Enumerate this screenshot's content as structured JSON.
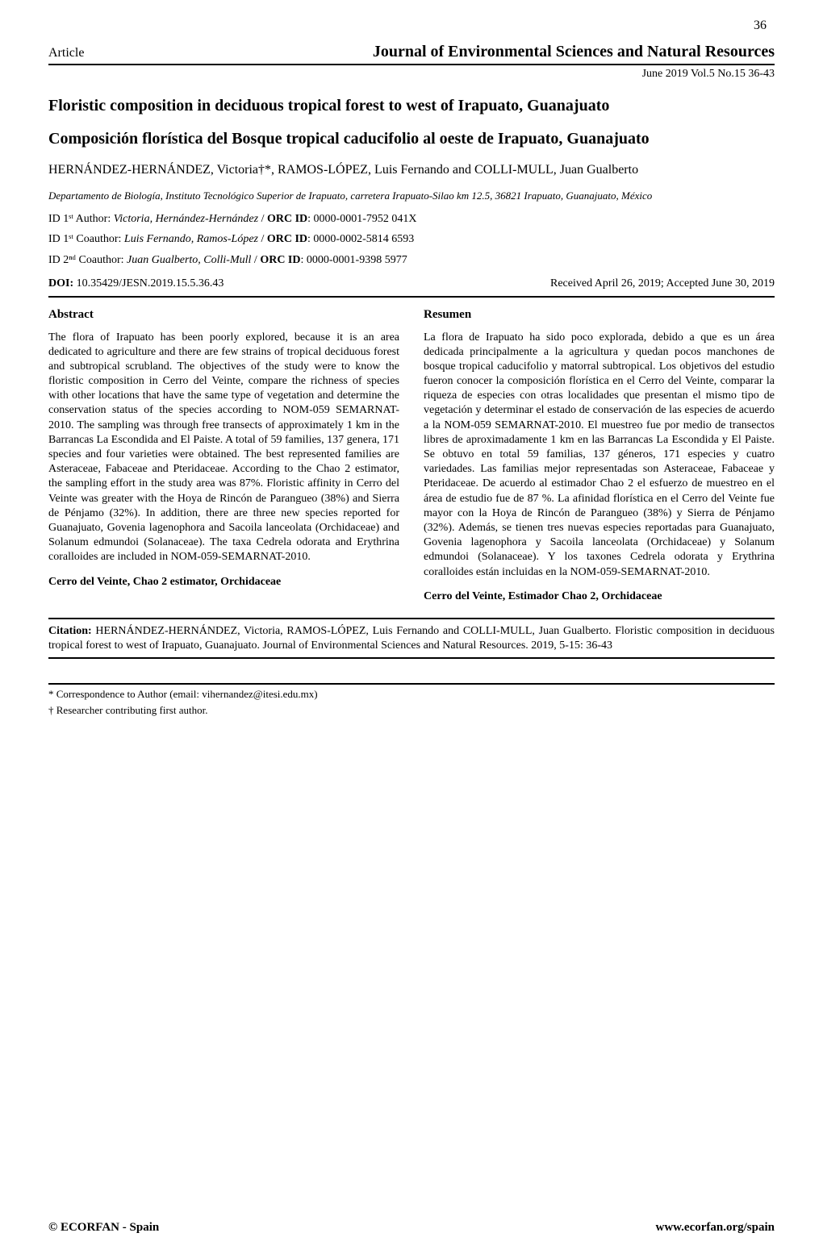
{
  "page_number": "36",
  "header": {
    "left": "Article",
    "right": "Journal of Environmental Sciences and Natural Resources",
    "sub": "June 2019 Vol.5 No.15 36-43"
  },
  "title_en": "Floristic composition in deciduous tropical forest to west of Irapuato, Guanajuato",
  "title_es": "Composición florística del Bosque tropical caducifolio al oeste de Irapuato, Guanajuato",
  "authors": "HERNÁNDEZ-HERNÁNDEZ, Victoria†*, RAMOS-LÓPEZ, Luis Fernando and COLLI-MULL, Juan Gualberto",
  "affiliation": "Departamento de Biología, Instituto Tecnológico Superior de Irapuato, carretera Irapuato-Silao km 12.5, 36821 Irapuato, Guanajuato, México",
  "id1": {
    "prefix": "ID 1ˢᵗ Author: ",
    "name": "Victoria, Hernández-Hernández",
    "sep": " / ",
    "orc_label": "ORC ID",
    "orc_val": ": 0000-0001-7952 041X"
  },
  "id2": {
    "prefix": "ID 1ˢᵗ Coauthor: ",
    "name": "Luis Fernando, Ramos-López",
    "sep": " / ",
    "orc_label": "ORC ID",
    "orc_val": ": 0000-0002-5814 6593"
  },
  "id3": {
    "prefix": "ID 2ⁿᵈ Coauthor: ",
    "name": "Juan Gualberto, Colli-Mull",
    "sep": " / ",
    "orc_label": "ORC ID",
    "orc_val": ": 0000-0001-9398 5977"
  },
  "doi": {
    "label": "DOI:",
    "value": " 10.35429/JESN.2019.15.5.36.43",
    "received": "Received April 26, 2019; Accepted June 30, 2019"
  },
  "abstract_en": {
    "heading": "Abstract",
    "body": "The flora of Irapuato has been poorly explored, because it is an area dedicated to agriculture and there are few strains of tropical deciduous forest and subtropical scrubland. The objectives of the study were to know the floristic composition in Cerro del Veinte, compare the richness of species with other locations that have the same type of vegetation and determine the conservation status of the species according to NOM-059 SEMARNAT-2010. The sampling was through free transects of approximately 1 km in the Barrancas La Escondida and El Paiste. A total of 59 families, 137 genera, 171 species and four varieties were obtained. The best represented families are Asteraceae, Fabaceae and Pteridaceae. According to the Chao 2 estimator, the sampling effort in the study area was 87%. Floristic affinity in Cerro del Veinte was greater with the Hoya de Rincón de Parangueo (38%) and Sierra de Pénjamo (32%). In addition, there are three new species reported for Guanajuato, Govenia lagenophora and Sacoila lanceolata (Orchidaceae) and Solanum edmundoi (Solanaceae). The taxa Cedrela odorata and Erythrina coralloides are included in NOM-059-SEMARNAT-2010.",
    "keywords": "Cerro del Veinte, Chao 2 estimator, Orchidaceae"
  },
  "abstract_es": {
    "heading": "Resumen",
    "body": "La flora de Irapuato ha sido poco explorada, debido a que es un área dedicada principalmente a la agricultura y quedan pocos manchones de bosque tropical caducifolio y matorral subtropical. Los objetivos del estudio fueron conocer la composición florística en el Cerro del Veinte, comparar la riqueza de especies con otras localidades que presentan el mismo tipo de vegetación y determinar el estado de conservación de las especies de acuerdo a la NOM-059 SEMARNAT-2010. El muestreo fue por medio de transectos libres de aproximadamente 1 km en las Barrancas La Escondida y El Paiste. Se obtuvo en total 59 familias, 137 géneros, 171 especies y cuatro variedades. Las familias mejor representadas son Asteraceae, Fabaceae y Pteridaceae. De acuerdo al estimador Chao 2 el esfuerzo de muestreo en el área de estudio fue de 87 %. La afinidad florística en el Cerro del Veinte fue mayor con la Hoya de Rincón de Parangueo (38%) y Sierra de Pénjamo (32%). Además, se tienen tres nuevas especies reportadas para Guanajuato, Govenia lagenophora y Sacoila lanceolata (Orchidaceae) y Solanum edmundoi (Solanaceae). Y los taxones Cedrela odorata y Erythrina coralloides están incluidas en la NOM-059-SEMARNAT-2010.",
    "keywords": "Cerro del Veinte, Estimador Chao 2, Orchidaceae"
  },
  "citation": {
    "label": "Citation: ",
    "text": "HERNÁNDEZ-HERNÁNDEZ, Victoria, RAMOS-LÓPEZ, Luis Fernando and COLLI-MULL, Juan Gualberto. Floristic composition in deciduous tropical forest to west of Irapuato, Guanajuato. Journal of Environmental Sciences and Natural Resources. 2019, 5-15: 36-43"
  },
  "footnote1": "* Correspondence to Author (email: vihernandez@itesi.edu.mx)",
  "footnote2": "† Researcher contributing first author.",
  "footer": {
    "left": "© ECORFAN - Spain",
    "right": "www.ecorfan.org/spain"
  }
}
